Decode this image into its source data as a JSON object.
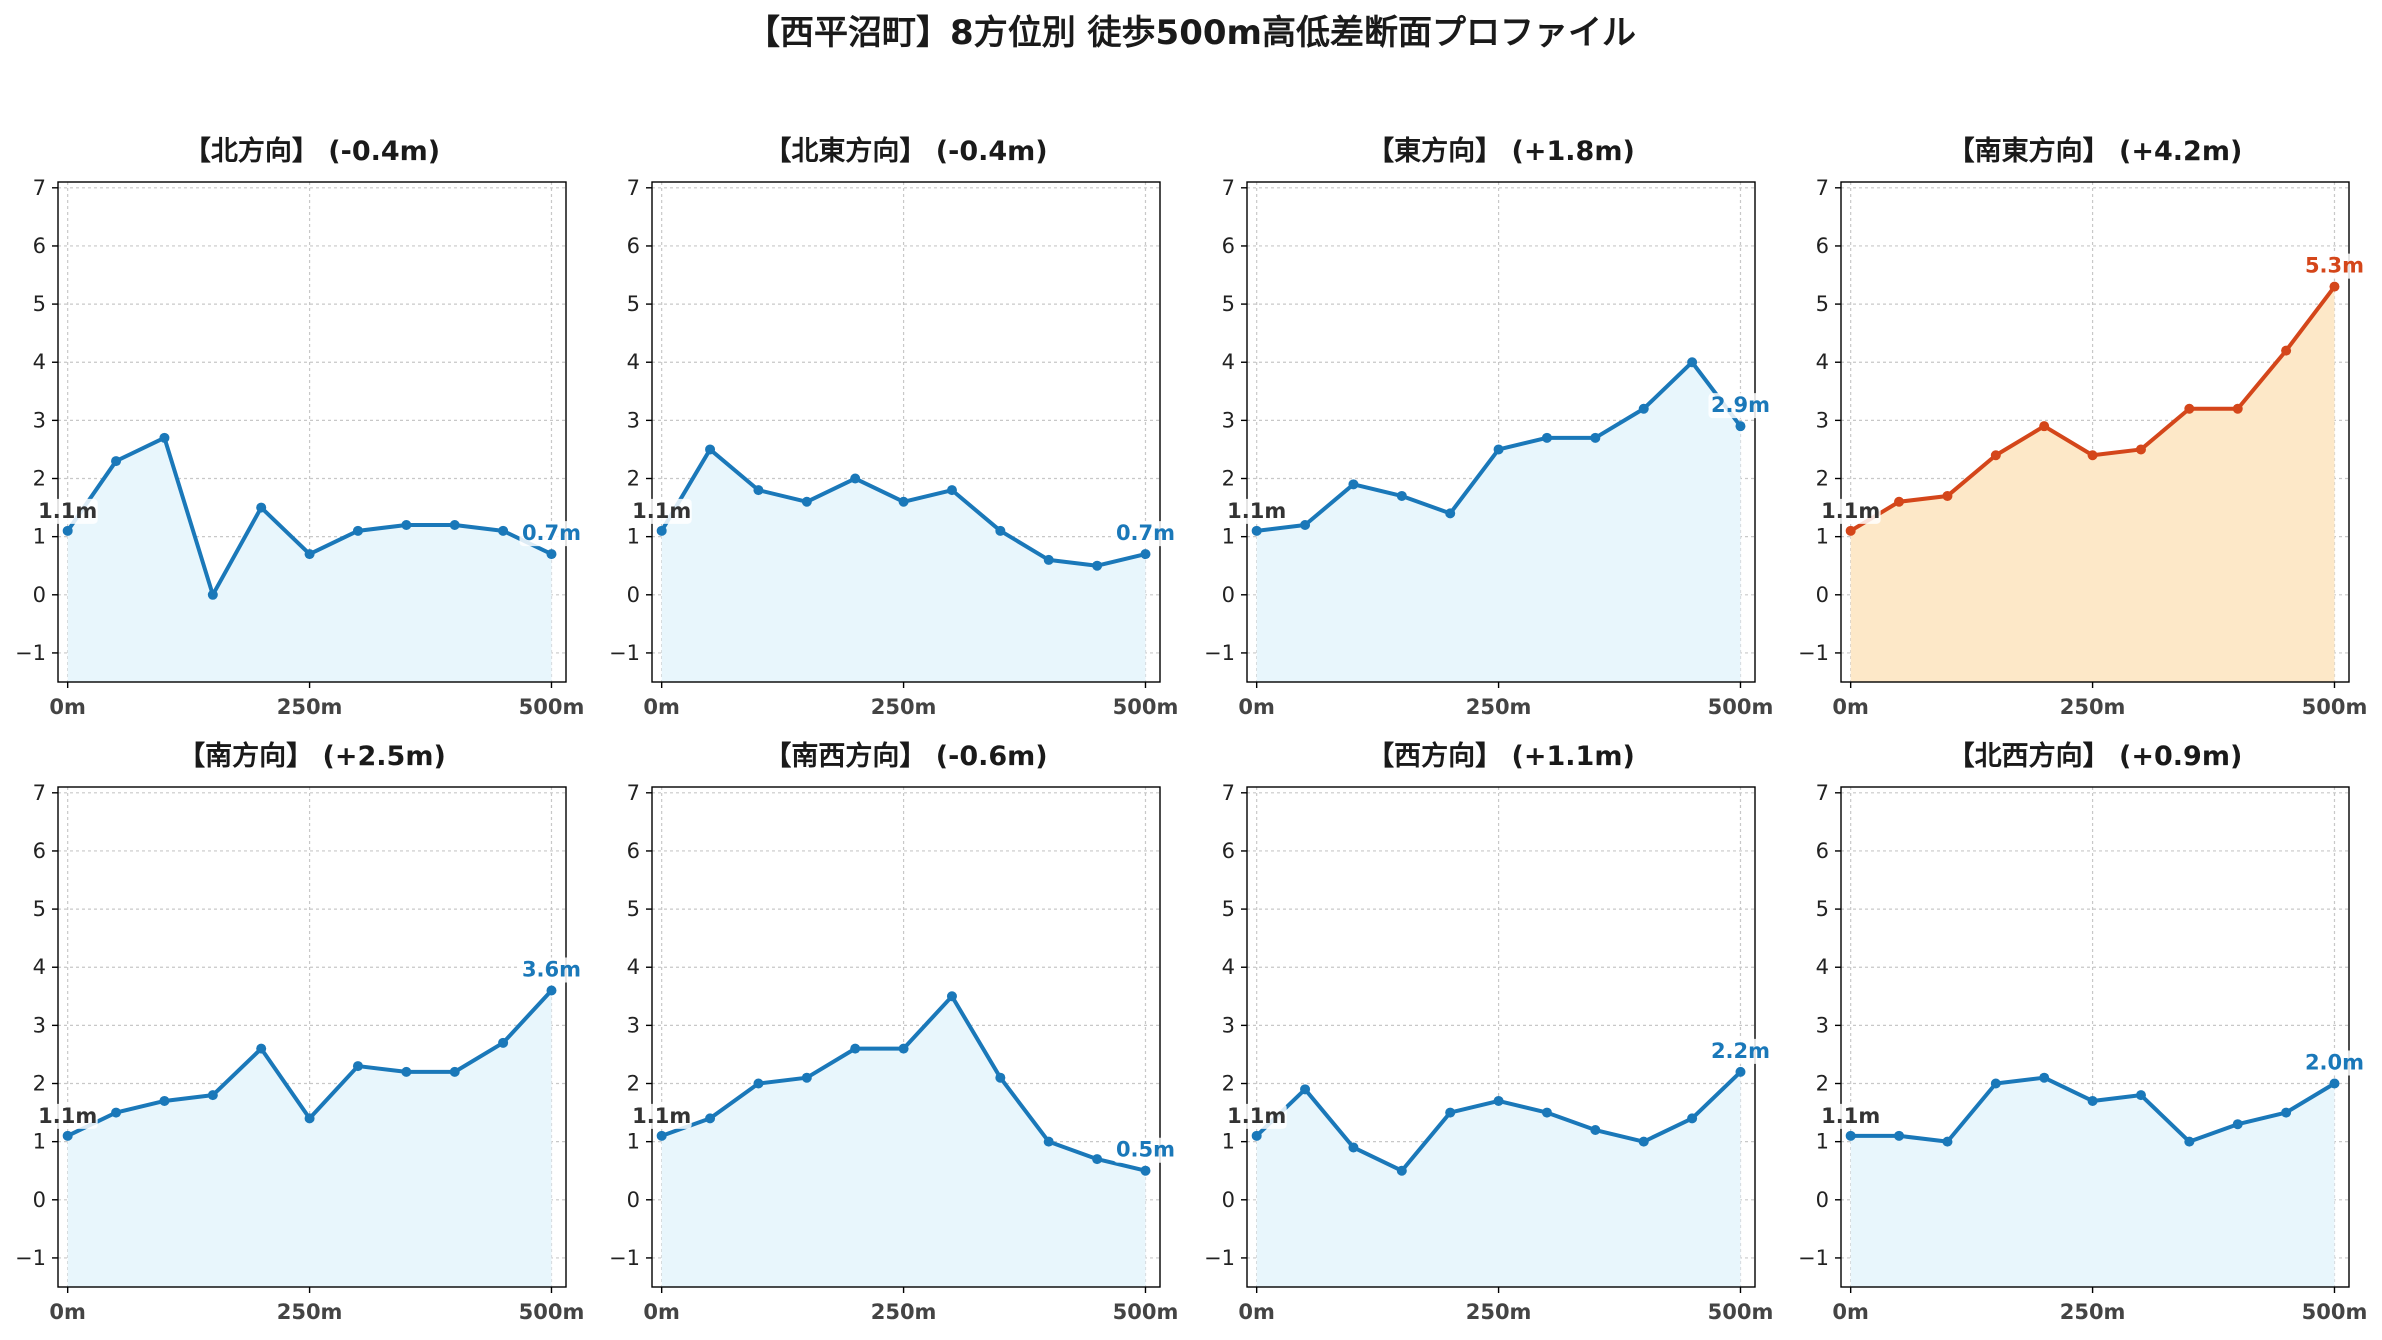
{
  "title": "【西平沼町】8方位別 徒歩500m高低差断面プロファイル",
  "colors": {
    "normal_line": "#1a78b9",
    "normal_fill": "#e8f6fc",
    "highlight_line": "#d4461a",
    "highlight_fill": "#fde8c8",
    "start_label": "#333333"
  },
  "chart_data": [
    {
      "type": "area",
      "title": "【北方向】 (-0.4m)",
      "x": [
        0,
        50,
        100,
        150,
        200,
        250,
        300,
        350,
        400,
        450,
        500
      ],
      "values": [
        1.1,
        2.3,
        2.7,
        0.0,
        1.5,
        0.7,
        1.1,
        1.2,
        1.2,
        1.1,
        0.7
      ],
      "xticks": [
        "0m",
        "250m",
        "500m"
      ],
      "ylim": [
        -1.5,
        7.1
      ],
      "yticks": [
        "−1",
        "0",
        "1",
        "2",
        "3",
        "4",
        "5",
        "6",
        "7"
      ],
      "start_label": "1.1m",
      "end_label": "0.7m",
      "highlight": false,
      "grid": true
    },
    {
      "type": "area",
      "title": "【北東方向】 (-0.4m)",
      "x": [
        0,
        50,
        100,
        150,
        200,
        250,
        300,
        350,
        400,
        450,
        500
      ],
      "values": [
        1.1,
        2.5,
        1.8,
        1.6,
        2.0,
        1.6,
        1.8,
        1.1,
        0.6,
        0.5,
        0.7
      ],
      "xticks": [
        "0m",
        "250m",
        "500m"
      ],
      "ylim": [
        -1.5,
        7.1
      ],
      "yticks": [
        "−1",
        "0",
        "1",
        "2",
        "3",
        "4",
        "5",
        "6",
        "7"
      ],
      "start_label": "1.1m",
      "end_label": "0.7m",
      "highlight": false,
      "grid": true
    },
    {
      "type": "area",
      "title": "【東方向】 (+1.8m)",
      "x": [
        0,
        50,
        100,
        150,
        200,
        250,
        300,
        350,
        400,
        450,
        500
      ],
      "values": [
        1.1,
        1.2,
        1.9,
        1.7,
        1.4,
        2.5,
        2.7,
        2.7,
        3.2,
        4.0,
        2.9
      ],
      "xticks": [
        "0m",
        "250m",
        "500m"
      ],
      "ylim": [
        -1.5,
        7.1
      ],
      "yticks": [
        "−1",
        "0",
        "1",
        "2",
        "3",
        "4",
        "5",
        "6",
        "7"
      ],
      "start_label": "1.1m",
      "end_label": "2.9m",
      "highlight": false,
      "grid": true
    },
    {
      "type": "area",
      "title": "【南東方向】 (+4.2m)",
      "x": [
        0,
        50,
        100,
        150,
        200,
        250,
        300,
        350,
        400,
        450,
        500
      ],
      "values": [
        1.1,
        1.6,
        1.7,
        2.4,
        2.9,
        2.4,
        2.5,
        3.2,
        3.2,
        4.2,
        5.3
      ],
      "xticks": [
        "0m",
        "250m",
        "500m"
      ],
      "ylim": [
        -1.5,
        7.1
      ],
      "yticks": [
        "−1",
        "0",
        "1",
        "2",
        "3",
        "4",
        "5",
        "6",
        "7"
      ],
      "start_label": "1.1m",
      "end_label": "5.3m",
      "highlight": true,
      "grid": true
    },
    {
      "type": "area",
      "title": "【南方向】 (+2.5m)",
      "x": [
        0,
        50,
        100,
        150,
        200,
        250,
        300,
        350,
        400,
        450,
        500
      ],
      "values": [
        1.1,
        1.5,
        1.7,
        1.8,
        2.6,
        1.4,
        2.3,
        2.2,
        2.2,
        2.7,
        3.6
      ],
      "xticks": [
        "0m",
        "250m",
        "500m"
      ],
      "ylim": [
        -1.5,
        7.1
      ],
      "yticks": [
        "−1",
        "0",
        "1",
        "2",
        "3",
        "4",
        "5",
        "6",
        "7"
      ],
      "start_label": "1.1m",
      "end_label": "3.6m",
      "highlight": false,
      "grid": true
    },
    {
      "type": "area",
      "title": "【南西方向】 (-0.6m)",
      "x": [
        0,
        50,
        100,
        150,
        200,
        250,
        300,
        350,
        400,
        450,
        500
      ],
      "values": [
        1.1,
        1.4,
        2.0,
        2.1,
        2.6,
        2.6,
        3.5,
        2.1,
        1.0,
        0.7,
        0.5
      ],
      "xticks": [
        "0m",
        "250m",
        "500m"
      ],
      "ylim": [
        -1.5,
        7.1
      ],
      "yticks": [
        "−1",
        "0",
        "1",
        "2",
        "3",
        "4",
        "5",
        "6",
        "7"
      ],
      "start_label": "1.1m",
      "end_label": "0.5m",
      "highlight": false,
      "grid": true
    },
    {
      "type": "area",
      "title": "【西方向】 (+1.1m)",
      "x": [
        0,
        50,
        100,
        150,
        200,
        250,
        300,
        350,
        400,
        450,
        500
      ],
      "values": [
        1.1,
        1.9,
        0.9,
        0.5,
        1.5,
        1.7,
        1.5,
        1.2,
        1.0,
        1.4,
        2.2
      ],
      "xticks": [
        "0m",
        "250m",
        "500m"
      ],
      "ylim": [
        -1.5,
        7.1
      ],
      "yticks": [
        "−1",
        "0",
        "1",
        "2",
        "3",
        "4",
        "5",
        "6",
        "7"
      ],
      "start_label": "1.1m",
      "end_label": "2.2m",
      "highlight": false,
      "grid": true
    },
    {
      "type": "area",
      "title": "【北西方向】 (+0.9m)",
      "x": [
        0,
        50,
        100,
        150,
        200,
        250,
        300,
        350,
        400,
        450,
        500
      ],
      "values": [
        1.1,
        1.1,
        1.0,
        2.0,
        2.1,
        1.7,
        1.8,
        1.0,
        1.3,
        1.5,
        2.0
      ],
      "xticks": [
        "0m",
        "250m",
        "500m"
      ],
      "ylim": [
        -1.5,
        7.1
      ],
      "yticks": [
        "−1",
        "0",
        "1",
        "2",
        "3",
        "4",
        "5",
        "6",
        "7"
      ],
      "start_label": "1.1m",
      "end_label": "2.0m",
      "highlight": false,
      "grid": true
    }
  ]
}
